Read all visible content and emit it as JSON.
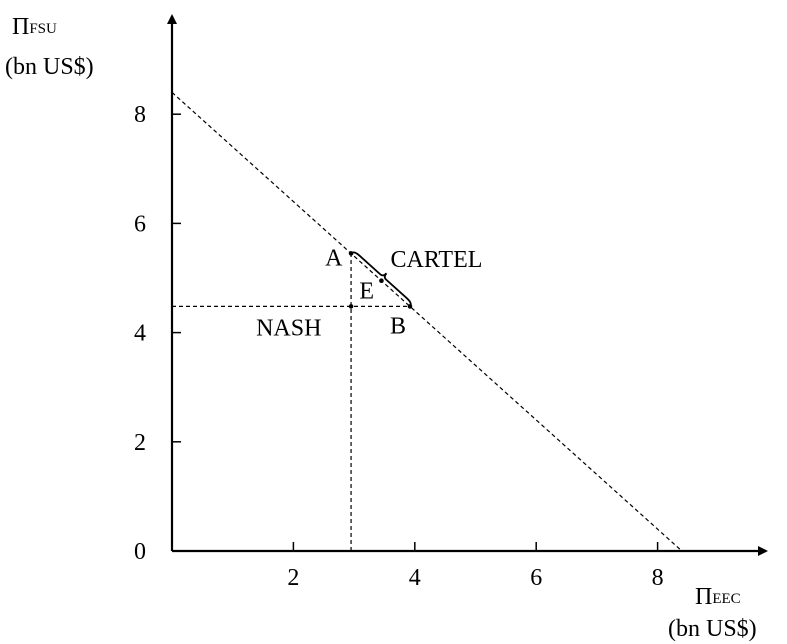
{
  "chart_data": {
    "type": "scatter",
    "title": "",
    "xlabel": {
      "symbol": "Π",
      "subscript": "EEC",
      "unit": "(bn US$)"
    },
    "ylabel": {
      "symbol": "Π",
      "subscript": "FSU",
      "unit": "(bn US$)"
    },
    "xlim": [
      0,
      9.8
    ],
    "ylim": [
      0,
      9.7
    ],
    "x_ticks": [
      2,
      4,
      6,
      8
    ],
    "y_ticks": [
      0,
      2,
      4,
      6,
      8
    ],
    "grid": false,
    "frontier": {
      "style": "dashed",
      "points": [
        [
          0,
          8.4
        ],
        [
          8.4,
          0
        ]
      ]
    },
    "guides": {
      "style": "dashed",
      "nash_x": 2.95,
      "nash_y": 4.48
    },
    "points": [
      {
        "label": "A",
        "x": 2.95,
        "y": 5.45
      },
      {
        "label": "E",
        "x": 3.45,
        "y": 4.95
      },
      {
        "label": "B",
        "x": 3.92,
        "y": 4.48
      },
      {
        "label": "NASH",
        "x": 2.95,
        "y": 4.48
      }
    ],
    "annotations": [
      {
        "label": "CARTEL",
        "from": "A",
        "to": "B"
      }
    ]
  }
}
